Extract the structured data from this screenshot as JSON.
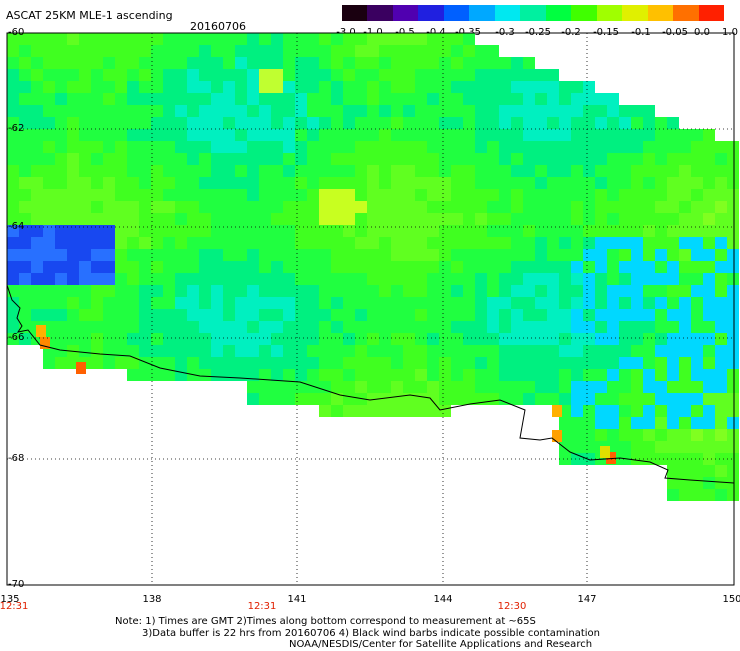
{
  "header": {
    "title": "ASCAT 25KM MLE-1 ascending",
    "date": "20160706"
  },
  "colorbar": {
    "labels": [
      "-3.0",
      "-1.0",
      "-0.5",
      "-0.4",
      "-0.35",
      "-0.3",
      "-0.25",
      "-0.2",
      "-0.15",
      "-0.1",
      "-0.05",
      "0.0",
      "1.0"
    ],
    "colors": [
      "#1a0010",
      "#3a0060",
      "#5000b0",
      "#2020e0",
      "#0060ff",
      "#00a8ff",
      "#00e8f0",
      "#00f0a0",
      "#00ff40",
      "#40ff00",
      "#a0ff00",
      "#e0f000",
      "#ffc000",
      "#ff7000",
      "#ff2000"
    ]
  },
  "axes": {
    "y_labels": [
      "-60",
      "-62",
      "-64",
      "-66",
      "-68",
      "-70"
    ],
    "x_labels": [
      "135",
      "138",
      "141",
      "144",
      "147",
      "150"
    ],
    "time_labels": [
      "12:31",
      "12:31",
      "12:30"
    ]
  },
  "map": {
    "field": "ASCAT 25KM MLE-1",
    "palette_note": "pixel field of MLE values, mostly -0.25 to -0.1 range (green/cyan)"
  },
  "notes": [
    "Note: 1) Times are GMT 2)Times along bottom correspond to measurement at ~65S",
    "3)Data buffer is 22 hrs from 20160706 4) Black wind barbs indicate possible contamination",
    "NOAA/NESDIS/Center for Satellite Applications and Research"
  ]
}
